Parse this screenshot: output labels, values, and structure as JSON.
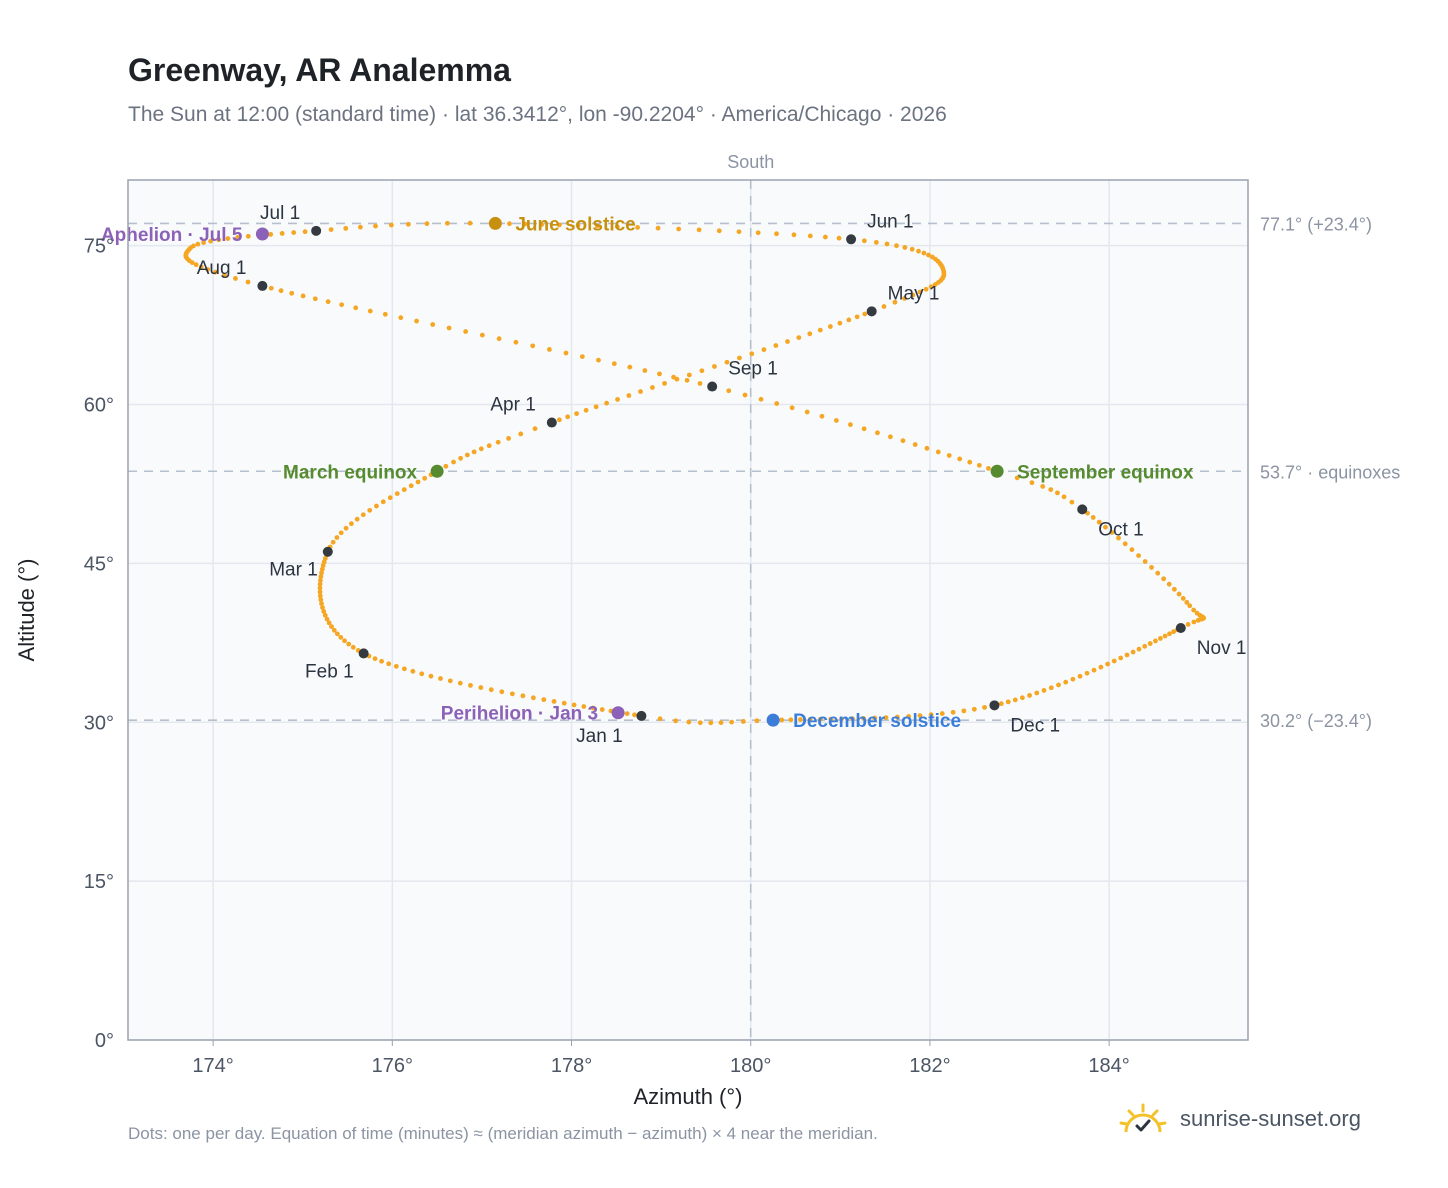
{
  "title": "Greenway, AR Analemma",
  "subtitle": "The Sun at 12:00 (standard time) · lat 36.3412°, lon -90.2204° · America/Chicago · 2026",
  "footnote": "Dots: one per day. Equation of time (minutes) ≈ (meridian azimuth − azimuth) × 4 near the meridian.",
  "brand": {
    "name": "sunrise-sunset.org",
    "icon": "sun-logo-icon"
  },
  "chart_data": {
    "type": "scatter",
    "title": "Greenway, AR Analemma",
    "xlabel": "Azimuth (°)",
    "ylabel": "Altitude (°)",
    "xlim": [
      173.05,
      185.55
    ],
    "ylim": [
      0,
      81.2
    ],
    "xticks": [
      174,
      176,
      178,
      180,
      182,
      184
    ],
    "xtick_labels": [
      "174°",
      "176°",
      "178°",
      "180°",
      "182°",
      "184°"
    ],
    "yticks": [
      0,
      15,
      30,
      45,
      60,
      75
    ],
    "ytick_labels": [
      "0°",
      "15°",
      "30°",
      "45°",
      "60°",
      "75°"
    ],
    "grid": true,
    "top_label": "South",
    "reference_lines": [
      {
        "orientation": "horizontal",
        "value": 77.1,
        "label": "77.1° (+23.4°)"
      },
      {
        "orientation": "horizontal",
        "value": 53.7,
        "label": "53.7° · equinoxes"
      },
      {
        "orientation": "horizontal",
        "value": 30.2,
        "label": "30.2° (−23.4°)"
      },
      {
        "orientation": "vertical",
        "value": 180,
        "label": "South"
      }
    ],
    "daily_path": {
      "anchors": [
        {
          "day": 0,
          "az": 178.78,
          "alt": 30.6
        },
        {
          "day": 31,
          "az": 175.68,
          "alt": 36.5
        },
        {
          "day": 59,
          "az": 175.28,
          "alt": 46.1
        },
        {
          "day": 78,
          "az": 176.5,
          "alt": 53.7
        },
        {
          "day": 90,
          "az": 177.78,
          "alt": 58.3
        },
        {
          "day": 120,
          "az": 181.35,
          "alt": 68.8
        },
        {
          "day": 135,
          "az": 182.15,
          "alt": 72.7
        },
        {
          "day": 151,
          "az": 181.12,
          "alt": 75.6
        },
        {
          "day": 171,
          "az": 177.15,
          "alt": 77.1
        },
        {
          "day": 181,
          "az": 175.15,
          "alt": 76.4
        },
        {
          "day": 195,
          "az": 173.75,
          "alt": 74.8
        },
        {
          "day": 212,
          "az": 174.55,
          "alt": 71.2
        },
        {
          "day": 243,
          "az": 179.57,
          "alt": 61.7
        },
        {
          "day": 265,
          "az": 182.75,
          "alt": 53.7
        },
        {
          "day": 273,
          "az": 183.7,
          "alt": 50.1
        },
        {
          "day": 292,
          "az": 184.9,
          "alt": 41.0
        },
        {
          "day": 304,
          "az": 184.8,
          "alt": 38.9
        },
        {
          "day": 334,
          "az": 182.72,
          "alt": 31.6
        },
        {
          "day": 355,
          "az": 180.25,
          "alt": 30.2
        },
        {
          "day": 365,
          "az": 178.78,
          "alt": 30.6
        }
      ]
    },
    "month_markers": [
      {
        "label": "Jan 1",
        "az": 178.78,
        "alt": 30.6,
        "label_pos": "below"
      },
      {
        "label": "Feb 1",
        "az": 175.68,
        "alt": 36.5,
        "label_pos": "below-left"
      },
      {
        "label": "Mar 1",
        "az": 175.28,
        "alt": 46.1,
        "label_pos": "below-left"
      },
      {
        "label": "Apr 1",
        "az": 177.78,
        "alt": 58.3,
        "label_pos": "above-left"
      },
      {
        "label": "May 1",
        "az": 181.35,
        "alt": 68.8,
        "label_pos": "above-right"
      },
      {
        "label": "Jun 1",
        "az": 181.12,
        "alt": 75.6,
        "label_pos": "above-right"
      },
      {
        "label": "Jul 1",
        "az": 175.15,
        "alt": 76.4,
        "label_pos": "above-left"
      },
      {
        "label": "Aug 1",
        "az": 174.55,
        "alt": 71.2,
        "label_pos": "above-left"
      },
      {
        "label": "Sep 1",
        "az": 179.57,
        "alt": 61.7,
        "label_pos": "above-right"
      },
      {
        "label": "Oct 1",
        "az": 183.7,
        "alt": 50.1,
        "label_pos": "below-right"
      },
      {
        "label": "Nov 1",
        "az": 184.8,
        "alt": 38.9,
        "label_pos": "below-right"
      },
      {
        "label": "Dec 1",
        "az": 182.72,
        "alt": 31.6,
        "label_pos": "below-right"
      }
    ],
    "events": [
      {
        "label": "June solstice",
        "az": 177.15,
        "alt": 77.1,
        "color": "#c8900f",
        "label_side": "right"
      },
      {
        "label": "March equinox",
        "az": 176.5,
        "alt": 53.7,
        "color": "#568b2f",
        "label_side": "left"
      },
      {
        "label": "September equinox",
        "az": 182.75,
        "alt": 53.7,
        "color": "#568b2f",
        "label_side": "right"
      },
      {
        "label": "December solstice",
        "az": 180.25,
        "alt": 30.2,
        "color": "#3b7dd8",
        "label_side": "right"
      },
      {
        "label": "Aphelion · Jul 5",
        "az": 174.55,
        "alt": 76.1,
        "color": "#8c62b8",
        "label_side": "left"
      },
      {
        "label": "Perihelion · Jan 3",
        "az": 178.52,
        "alt": 30.9,
        "color": "#8c62b8",
        "label_side": "left"
      }
    ],
    "colors": {
      "path": "#f5a623",
      "month_marker": "#343a40",
      "grid": "#e4e8ee",
      "plot_bg": "#f8fafc"
    }
  }
}
